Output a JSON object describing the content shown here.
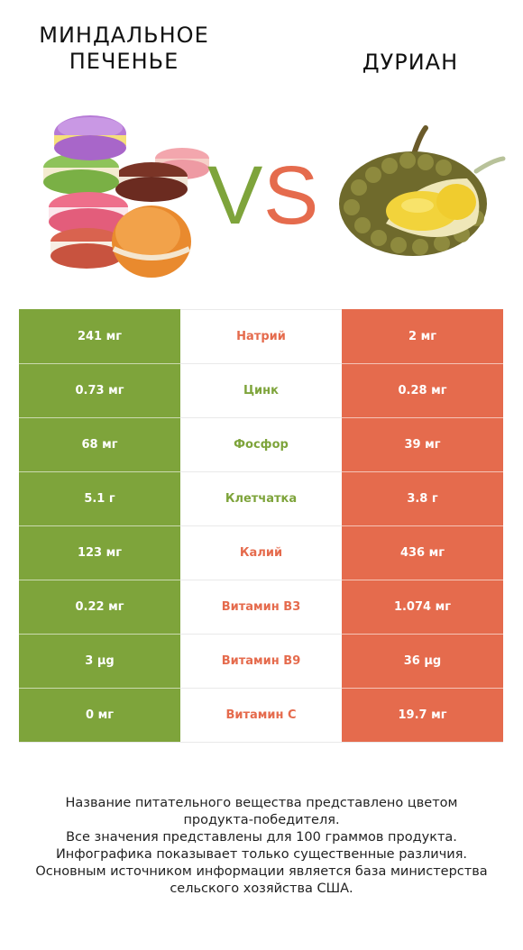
{
  "header": {
    "left_title_line1": "Миндальное",
    "left_title_line2": "печенье",
    "right_title": "Дуриан",
    "vs_text": "VS"
  },
  "colors": {
    "left_winner": "#7ea43b",
    "right_winner": "#e56b4d"
  },
  "table": {
    "rows": [
      {
        "left": "241 мг",
        "name": "Натрий",
        "right": "2 мг",
        "winner": "right"
      },
      {
        "left": "0.73 мг",
        "name": "Цинк",
        "right": "0.28 мг",
        "winner": "left"
      },
      {
        "left": "68 мг",
        "name": "Фосфор",
        "right": "39 мг",
        "winner": "left"
      },
      {
        "left": "5.1 г",
        "name": "Клетчатка",
        "right": "3.8 г",
        "winner": "left"
      },
      {
        "left": "123 мг",
        "name": "Калий",
        "right": "436 мг",
        "winner": "right"
      },
      {
        "left": "0.22 мг",
        "name": "Витамин B3",
        "right": "1.074 мг",
        "winner": "right"
      },
      {
        "left": "3 µg",
        "name": "Витамин B9",
        "right": "36 µg",
        "winner": "right"
      },
      {
        "left": "0 мг",
        "name": "Витамин C",
        "right": "19.7 мг",
        "winner": "right"
      }
    ]
  },
  "footnote": {
    "line1": "Название питательного вещества представлено цветом",
    "line2": "продукта-победителя.",
    "line3": "Все значения представлены для 100 граммов продукта.",
    "line4": "Инфографика показывает только существенные различия.",
    "line5": "Основным источником информации является база министерства",
    "line6": "сельского хозяйства США."
  }
}
